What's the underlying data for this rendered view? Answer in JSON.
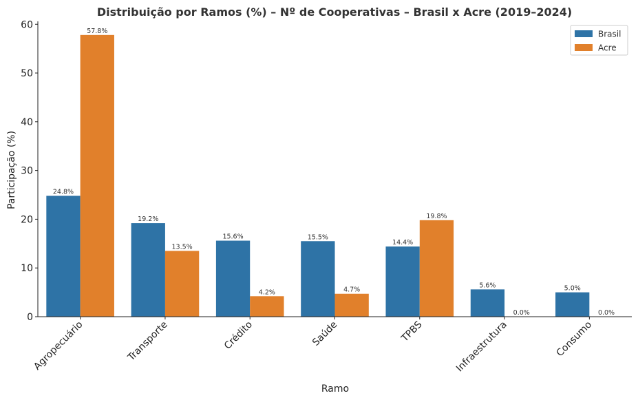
{
  "chart_data": {
    "type": "bar",
    "title": "Distribuição por Ramos (%) – Nº de Cooperativas – Brasil x Acre (2019–2024)",
    "xlabel": "Ramo",
    "ylabel": "Participação (%)",
    "categories": [
      "Agropecuário",
      "Transporte",
      "Crédito",
      "Saúde",
      "TPBS",
      "Infraestrutura",
      "Consumo"
    ],
    "series": [
      {
        "name": "Brasil",
        "color": "#2e73a6",
        "values": [
          24.8,
          19.2,
          15.6,
          15.5,
          14.4,
          5.6,
          5.0
        ],
        "labels": [
          "24.8%",
          "19.2%",
          "15.6%",
          "15.5%",
          "14.4%",
          "5.6%",
          "5.0%"
        ]
      },
      {
        "name": "Acre",
        "color": "#e1802b",
        "values": [
          57.8,
          13.5,
          4.2,
          4.7,
          19.8,
          0.0,
          0.0
        ],
        "labels": [
          "57.8%",
          "13.5%",
          "4.2%",
          "4.7%",
          "19.8%",
          "0.0%",
          "0.0%"
        ]
      }
    ],
    "ylim": [
      0,
      60.6
    ],
    "yticks": [
      0,
      10,
      20,
      30,
      40,
      50,
      60
    ],
    "grid": false,
    "legend": "top-right"
  }
}
